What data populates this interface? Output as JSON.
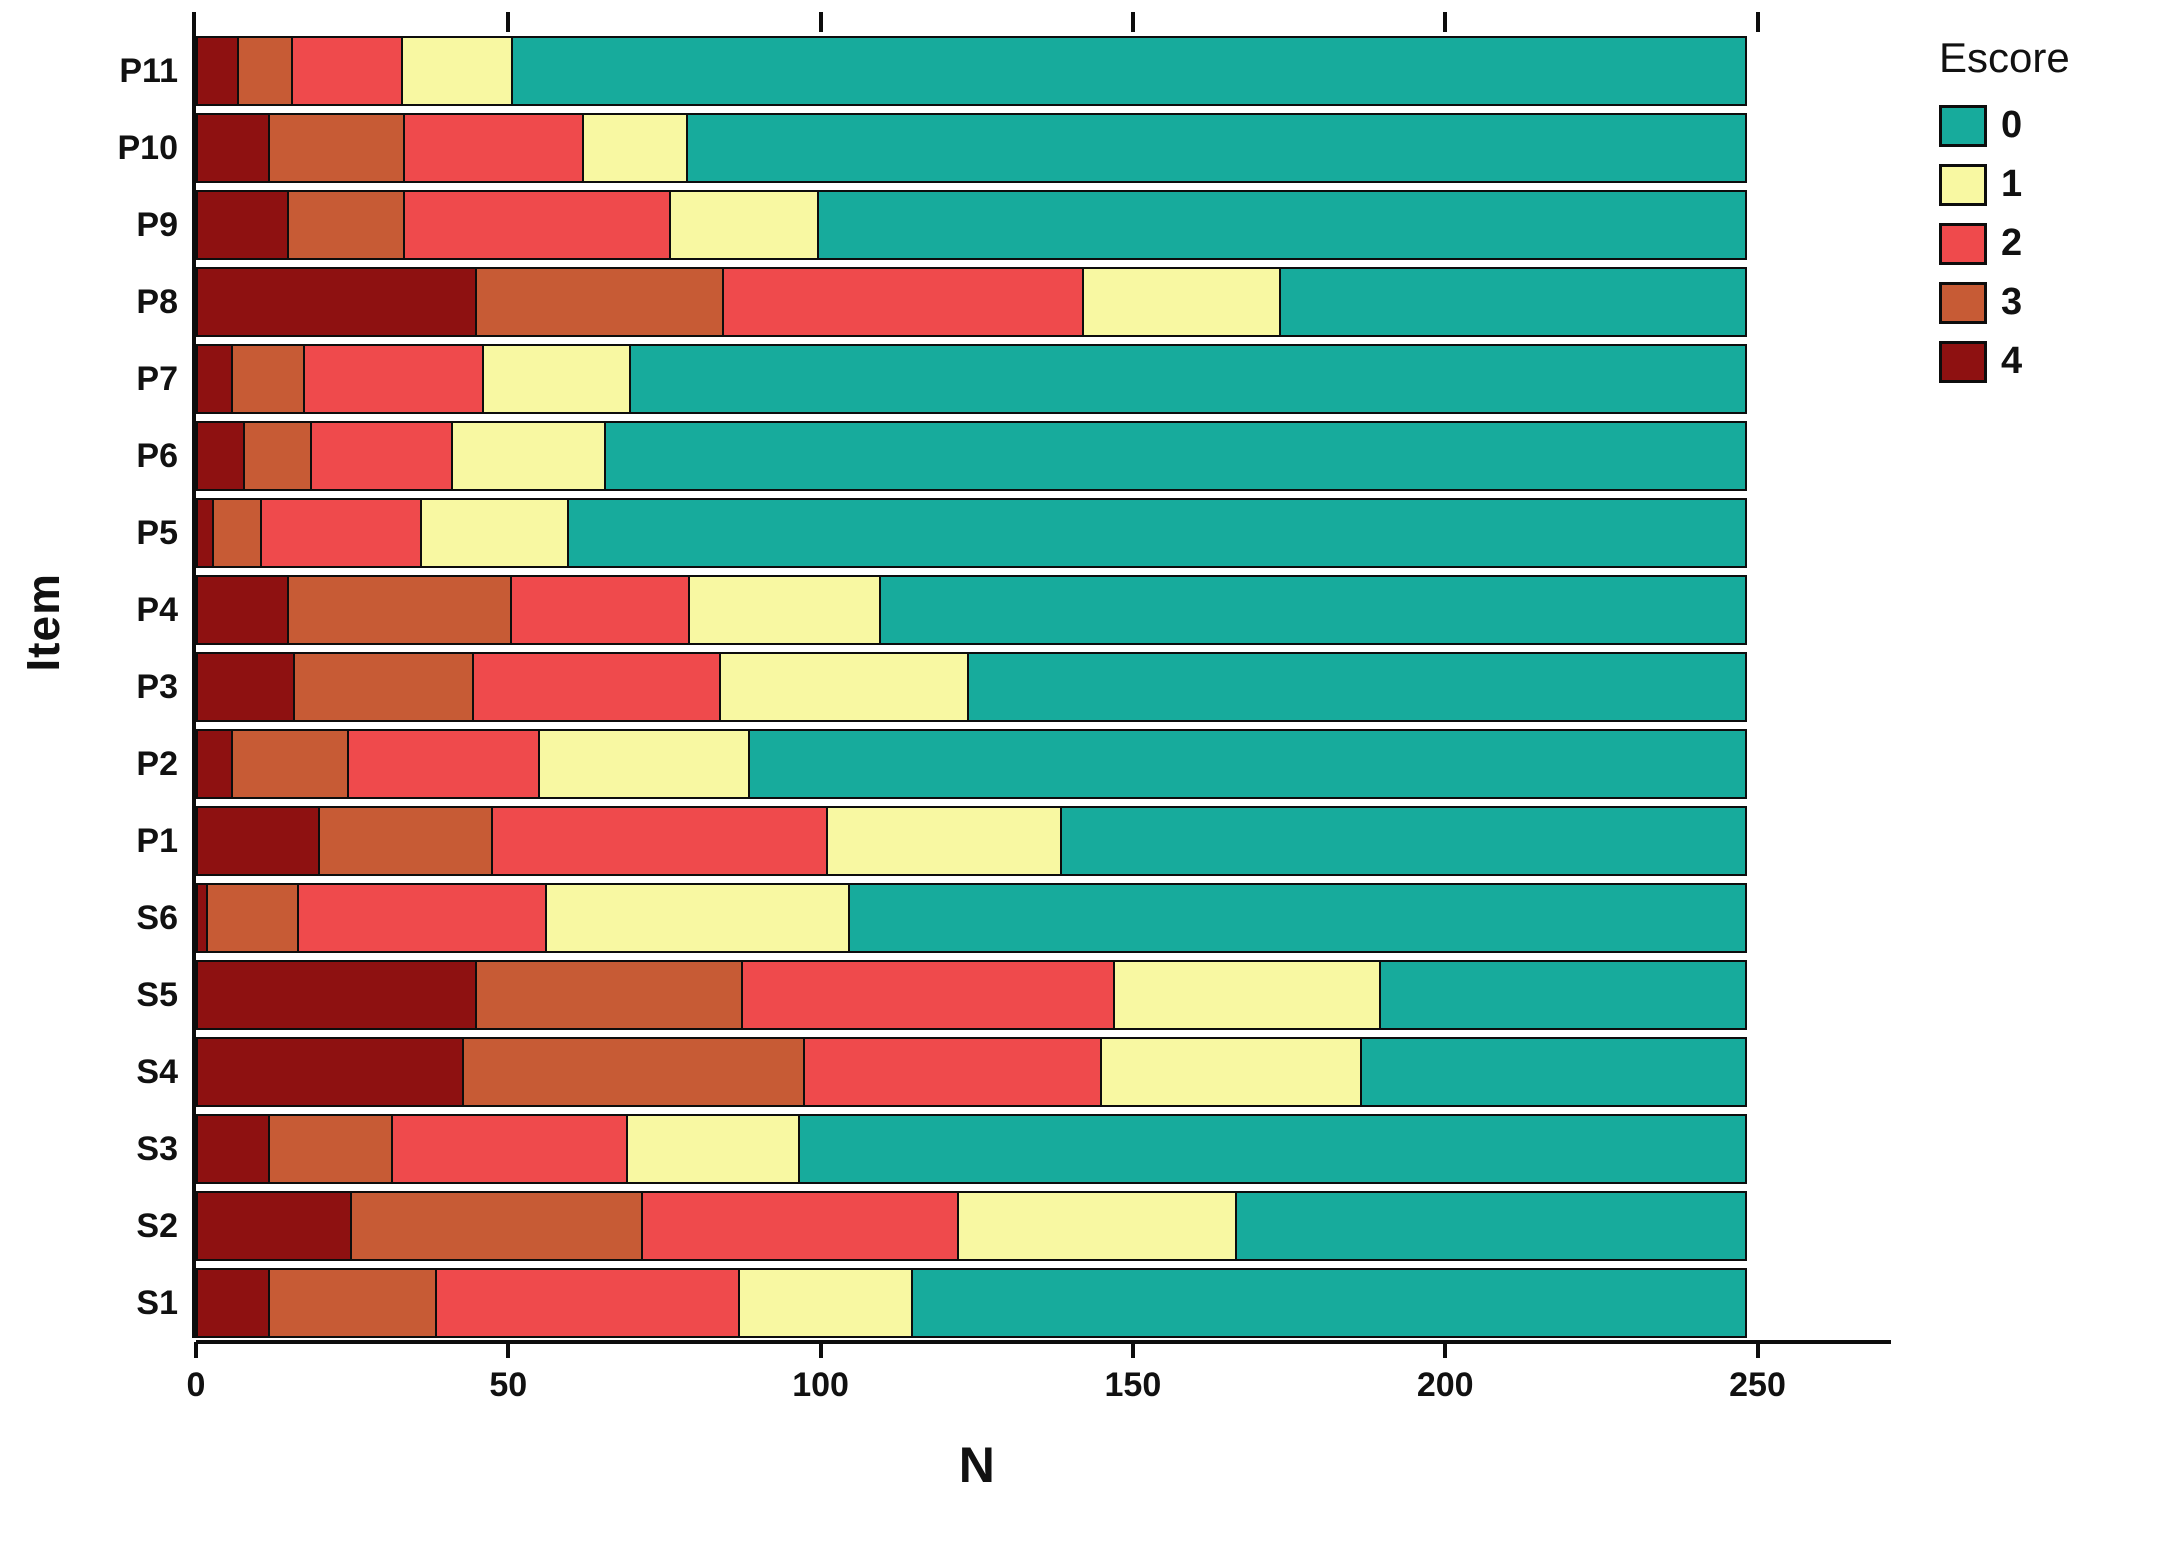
{
  "chart_data": {
    "type": "bar",
    "orientation": "horizontal",
    "stacked": true,
    "title": "",
    "xlabel": "N",
    "ylabel": "Item",
    "xlim": [
      0,
      250
    ],
    "x_ticks": [
      0,
      50,
      100,
      150,
      200,
      250
    ],
    "grid": false,
    "categories": [
      "P11",
      "P10",
      "P9",
      "P8",
      "P7",
      "P6",
      "P5",
      "P4",
      "P3",
      "P2",
      "P1",
      "S6",
      "S5",
      "S4",
      "S3",
      "S2",
      "S1"
    ],
    "series": [
      {
        "name": "4",
        "color": "#8E1111",
        "values": [
          7,
          12,
          15,
          45,
          6,
          8,
          3,
          15,
          16,
          6,
          20,
          2,
          45,
          43,
          12,
          25,
          12
        ]
      },
      {
        "name": "3",
        "color": "#C75B35",
        "values": [
          9,
          22,
          19,
          40,
          12,
          11,
          8,
          36,
          29,
          19,
          28,
          15,
          43,
          55,
          20,
          47,
          27
        ]
      },
      {
        "name": "2",
        "color": "#EF4A4C",
        "values": [
          18,
          29,
          43,
          58,
          29,
          23,
          26,
          29,
          40,
          31,
          54,
          40,
          60,
          48,
          38,
          51,
          49
        ]
      },
      {
        "name": "1",
        "color": "#F8F8A2",
        "values": [
          18,
          17,
          24,
          32,
          24,
          25,
          24,
          31,
          40,
          34,
          38,
          49,
          43,
          42,
          28,
          45,
          28
        ]
      },
      {
        "name": "0",
        "color": "#17AB9C",
        "values": [
          198,
          170,
          149,
          75,
          179,
          183,
          189,
          139,
          125,
          160,
          110,
          144,
          59,
          62,
          152,
          82,
          134
        ]
      }
    ],
    "legend": {
      "title": "Escore",
      "position": "top-right",
      "entries": [
        {
          "label": "0",
          "color": "#17AB9C"
        },
        {
          "label": "1",
          "color": "#F8F8A2"
        },
        {
          "label": "2",
          "color": "#EF4A4C"
        },
        {
          "label": "3",
          "color": "#C75B35"
        },
        {
          "label": "4",
          "color": "#8E1111"
        }
      ]
    }
  }
}
